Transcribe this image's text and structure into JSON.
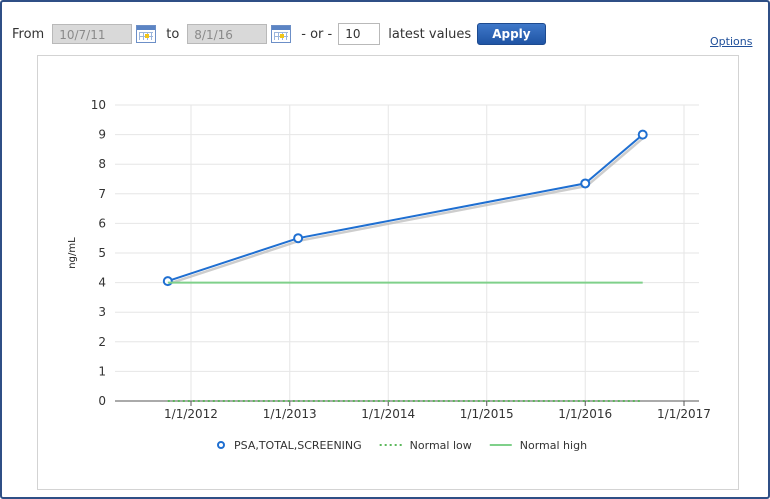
{
  "toolbar": {
    "from_label": "From",
    "from_value": "10/7/11",
    "to_label": "to",
    "to_value": "8/1/16",
    "or_label": "- or -",
    "count_value": "10",
    "latest_label": "latest values",
    "apply_label": "Apply",
    "options_label": "Options"
  },
  "chart_data": {
    "type": "line",
    "ylabel": "ng/mL",
    "xlabel": "",
    "ylim": [
      0,
      10
    ],
    "y_ticks": [
      0,
      1,
      2,
      3,
      4,
      5,
      6,
      7,
      8,
      9,
      10
    ],
    "x_ticks": [
      "1/1/2012",
      "1/1/2013",
      "1/1/2014",
      "1/1/2015",
      "1/1/2016",
      "1/1/2017"
    ],
    "grid": true,
    "legend_position": "bottom",
    "series": [
      {
        "name": "PSA,TOTAL,SCREENING",
        "style": "line-markers",
        "color": "#1f6fd1",
        "x": [
          "10/7/2011",
          "2/1/2013",
          "1/1/2016",
          "8/1/2016"
        ],
        "y": [
          4.05,
          5.5,
          7.35,
          9.0
        ]
      },
      {
        "name": "Normal low",
        "style": "dotted",
        "color": "#5cb85c",
        "x": [
          "10/7/2011",
          "8/1/2016"
        ],
        "y": [
          0,
          0
        ]
      },
      {
        "name": "Normal high",
        "style": "solid",
        "color": "#7fd08a",
        "x": [
          "10/7/2011",
          "8/1/2016"
        ],
        "y": [
          4,
          4
        ]
      }
    ]
  }
}
